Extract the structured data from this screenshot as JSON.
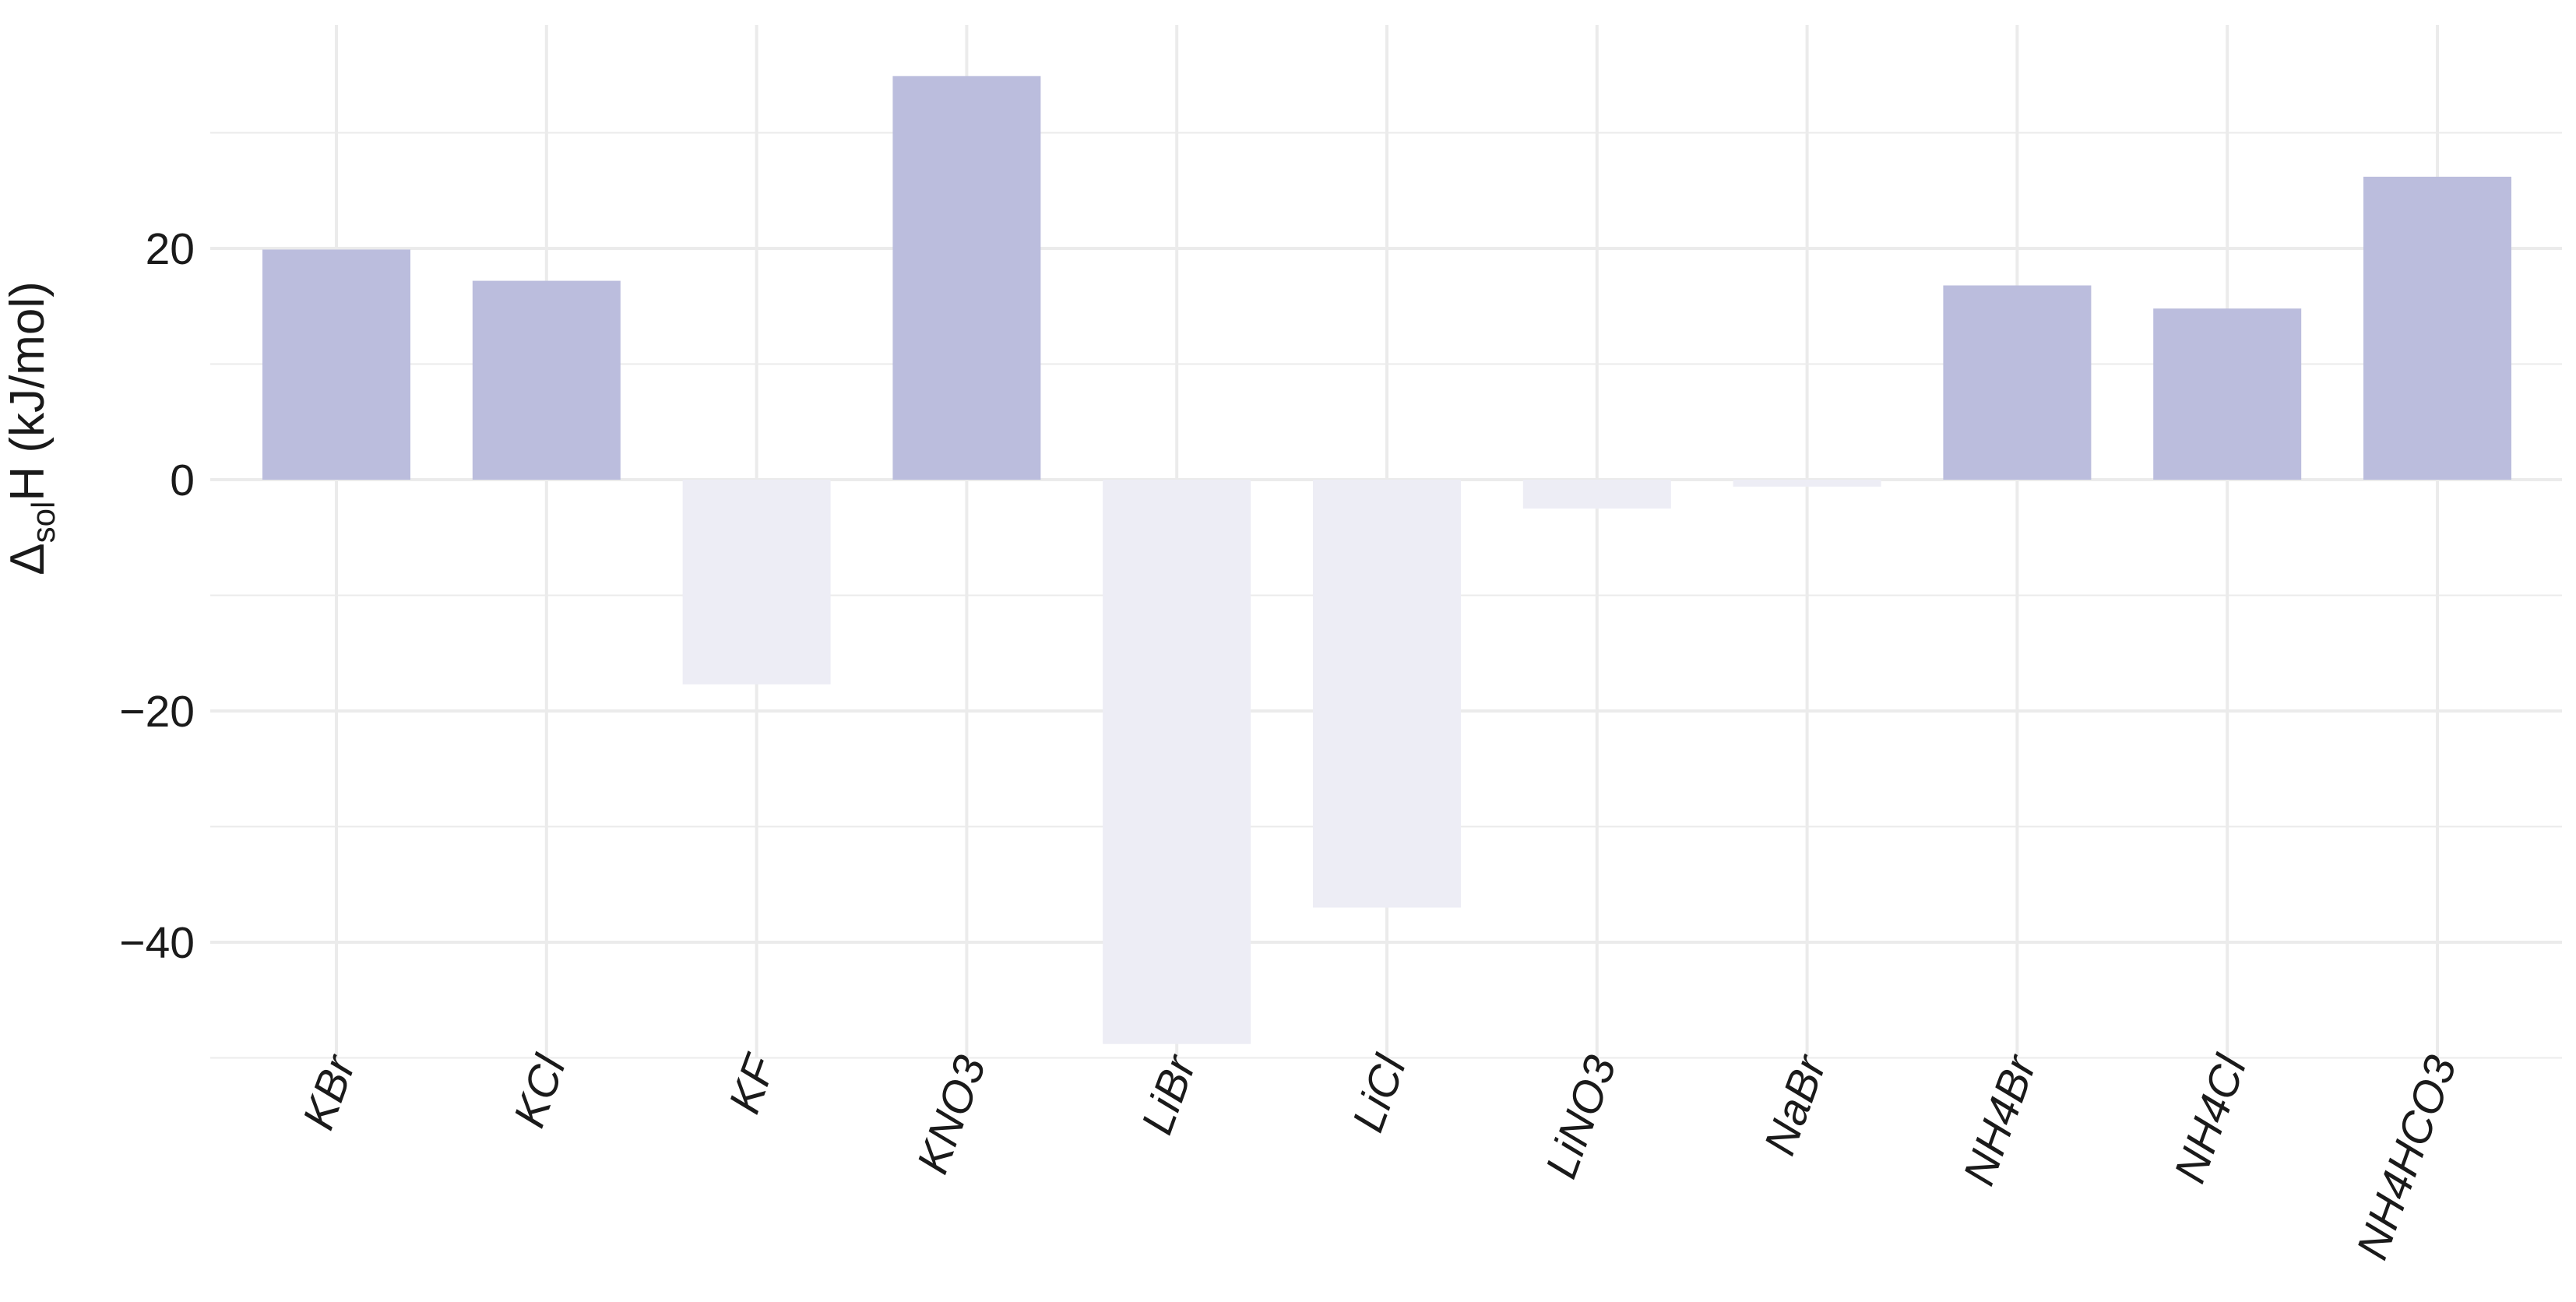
{
  "chart_data": {
    "type": "bar",
    "categories": [
      "KBr",
      "KCl",
      "KF",
      "KNO3",
      "LiBr",
      "LiCl",
      "LiNO3",
      "NaBr",
      "NH4Br",
      "NH4Cl",
      "NH4HCO3"
    ],
    "values": [
      19.9,
      17.2,
      -17.7,
      34.9,
      -48.8,
      -37.0,
      -2.5,
      -0.6,
      16.8,
      14.8,
      26.2
    ],
    "ylabel": {
      "prefix": "Δ",
      "subscript": "sol",
      "suffix": "H (kJ/mol)"
    },
    "xlabel": "",
    "ylim": [
      -50,
      40
    ],
    "y_ticks": [
      {
        "value": 20,
        "label": "20"
      },
      {
        "value": 0,
        "label": "0"
      },
      {
        "value": -20,
        "label": "−20"
      },
      {
        "value": -40,
        "label": "−40"
      }
    ],
    "y_minor_ticks": [
      30,
      10,
      -10,
      -30,
      -50
    ],
    "grid": true,
    "legend": "none",
    "colors": {
      "positive": "#bbbddd",
      "negative": "#ededf5",
      "grid": "#ebebeb",
      "text": "#1a1a1a"
    }
  }
}
